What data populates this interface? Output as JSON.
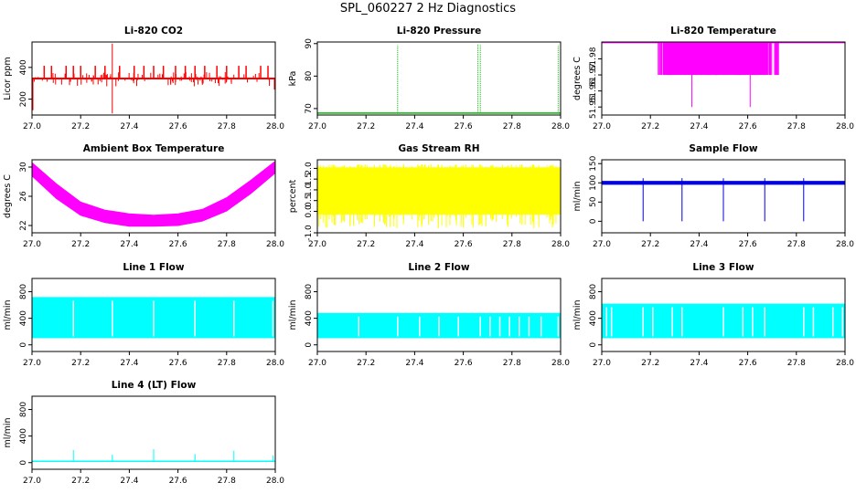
{
  "figure": {
    "title": "SPL_060227  2 Hz Diagnostics"
  },
  "chart_data": [
    {
      "id": "co2",
      "type": "line",
      "title": "Li-820 CO2",
      "ylabel": "Licor ppm",
      "xlim": [
        27.0,
        28.0
      ],
      "ylim": [
        100,
        560
      ],
      "xticks": [
        27.0,
        27.2,
        27.4,
        27.6,
        27.8,
        28.0
      ],
      "xtick_labels": [
        "27.0",
        "27.2",
        "27.4",
        "27.6",
        "27.8",
        "28.0"
      ],
      "yticks": [
        200,
        400
      ],
      "ytick_labels": [
        "200",
        "400"
      ],
      "color": "#ff0000",
      "series": {
        "baseline": 330,
        "spikes_up": [
          27.05,
          27.08,
          27.14,
          27.17,
          27.2,
          27.26,
          27.3,
          27.36,
          27.42,
          27.46,
          27.5,
          27.54,
          27.59,
          27.63,
          27.67,
          27.71,
          27.76,
          27.8,
          27.85,
          27.88,
          27.94,
          27.97
        ],
        "spike_up_value": 410,
        "big_spike_x": 27.33,
        "big_spike_range": [
          110,
          550
        ],
        "dip_start": [
          27.0,
          130
        ]
      }
    },
    {
      "id": "pressure",
      "type": "line",
      "title": "Li-820 Pressure",
      "ylabel": "kPa",
      "xlim": [
        27.0,
        28.0
      ],
      "ylim": [
        68,
        90.5
      ],
      "xticks": [
        27.0,
        27.2,
        27.4,
        27.6,
        27.8,
        28.0
      ],
      "xtick_labels": [
        "27.0",
        "27.2",
        "27.4",
        "27.6",
        "27.8",
        "28.0"
      ],
      "yticks": [
        70,
        80,
        90
      ],
      "ytick_labels": [
        "70",
        "80",
        "90"
      ],
      "color": "#00bb00",
      "series": {
        "baseline": 68.6,
        "jumps": [
          27.0,
          27.33,
          27.66,
          27.67,
          27.99
        ],
        "jump_values": [
          85,
          89.5,
          89.8,
          89.6,
          89.5
        ]
      }
    },
    {
      "id": "licor_temp",
      "type": "line",
      "title": "Li-820 Temperature",
      "ylabel": "degrees C",
      "xlim": [
        27.0,
        28.0
      ],
      "ylim": [
        51.945,
        51.9905
      ],
      "xticks": [
        27.0,
        27.2,
        27.4,
        27.6,
        27.8,
        28.0
      ],
      "xtick_labels": [
        "27.0",
        "27.2",
        "27.4",
        "27.6",
        "27.8",
        "28.0"
      ],
      "yticks": [
        51.95,
        51.96,
        51.97,
        51.98
      ],
      "ytick_labels": [
        "51.95",
        "51.96",
        "51.97",
        "51.98"
      ],
      "color": "#ff00ff",
      "series": {
        "high": 51.99,
        "low": 51.97,
        "min_spike": 51.95,
        "band_range": [
          27.23,
          27.73
        ],
        "min_spikes": [
          27.37,
          27.61
        ]
      }
    },
    {
      "id": "box_temp",
      "type": "area",
      "title": "Ambient Box Temperature",
      "ylabel": "degrees C",
      "xlim": [
        27.0,
        28.0
      ],
      "ylim": [
        21.0,
        31.0
      ],
      "xticks": [
        27.0,
        27.2,
        27.4,
        27.6,
        27.8,
        28.0
      ],
      "xtick_labels": [
        "27.0",
        "27.2",
        "27.4",
        "27.6",
        "27.8",
        "28.0"
      ],
      "yticks": [
        22,
        26,
        30
      ],
      "ytick_labels": [
        "22",
        "26",
        "30"
      ],
      "color": "#ff00ff",
      "series": {
        "x": [
          27.0,
          27.1,
          27.2,
          27.3,
          27.4,
          27.5,
          27.6,
          27.7,
          27.8,
          27.9,
          28.0
        ],
        "low": [
          28.8,
          25.7,
          23.4,
          22.4,
          21.9,
          21.9,
          22.0,
          22.6,
          24.0,
          26.4,
          29.2
        ],
        "high": [
          30.6,
          27.7,
          25.2,
          24.1,
          23.6,
          23.4,
          23.6,
          24.2,
          25.8,
          28.2,
          30.8
        ]
      }
    },
    {
      "id": "rh",
      "type": "area",
      "title": "Gas Stream RH",
      "ylabel": "percent",
      "xlim": [
        27.0,
        28.0
      ],
      "ylim": [
        -1.0,
        2.4
      ],
      "xticks": [
        27.0,
        27.2,
        27.4,
        27.6,
        27.8,
        28.0
      ],
      "xtick_labels": [
        "27.0",
        "27.2",
        "27.4",
        "27.6",
        "27.8",
        "28.0"
      ],
      "yticks": [
        -1.0,
        0.0,
        0.5,
        1.0,
        1.5,
        2.0
      ],
      "ytick_labels": [
        "-1.0",
        "0.0",
        "0.5",
        "1.0",
        "1.5",
        "2.0"
      ],
      "color": "#ffff00",
      "series": {
        "low": -0.15,
        "high": 2.05,
        "min": -0.8,
        "max": 2.2
      }
    },
    {
      "id": "sample_flow",
      "type": "line",
      "title": "Sample Flow",
      "ylabel": "ml/min",
      "xlim": [
        27.0,
        28.0
      ],
      "ylim": [
        -30,
        160
      ],
      "xticks": [
        27.0,
        27.2,
        27.4,
        27.6,
        27.8,
        28.0
      ],
      "xtick_labels": [
        "27.0",
        "27.2",
        "27.4",
        "27.6",
        "27.8",
        "28.0"
      ],
      "yticks": [
        0,
        50,
        100,
        150
      ],
      "ytick_labels": [
        "0",
        "50",
        "100",
        "150"
      ],
      "color": "#0000dd",
      "series": {
        "baseline": 100,
        "dips": [
          27.17,
          27.33,
          27.5,
          27.67,
          27.83,
          28.0
        ],
        "dip_value": 0,
        "peak": 112
      }
    },
    {
      "id": "line1",
      "type": "area",
      "title": "Line 1 Flow",
      "ylabel": "ml/min",
      "xlim": [
        27.0,
        28.0
      ],
      "ylim": [
        -100,
        1000
      ],
      "xticks": [
        27.0,
        27.2,
        27.4,
        27.6,
        27.8,
        28.0
      ],
      "xtick_labels": [
        "27.0",
        "27.2",
        "27.4",
        "27.6",
        "27.8",
        "28.0"
      ],
      "yticks": [
        0,
        400,
        800
      ],
      "ytick_labels": [
        "0",
        "400",
        "800"
      ],
      "color": "#00ffff",
      "series": {
        "low": 100,
        "high": 720,
        "gaps": [
          27.17,
          27.33,
          27.5,
          27.67,
          27.83,
          27.99
        ]
      }
    },
    {
      "id": "line2",
      "type": "area",
      "title": "Line 2 Flow",
      "ylabel": "ml/min",
      "xlim": [
        27.0,
        28.0
      ],
      "ylim": [
        -100,
        1000
      ],
      "xticks": [
        27.0,
        27.2,
        27.4,
        27.6,
        27.8,
        28.0
      ],
      "xtick_labels": [
        "27.0",
        "27.2",
        "27.4",
        "27.6",
        "27.8",
        "28.0"
      ],
      "yticks": [
        0,
        400,
        800
      ],
      "ytick_labels": [
        "0",
        "400",
        "800"
      ],
      "color": "#00ffff",
      "series": {
        "low": 100,
        "high": 480,
        "gaps": [
          27.17,
          27.33,
          27.42,
          27.5,
          27.58,
          27.67,
          27.71,
          27.75,
          27.79,
          27.83,
          27.87,
          27.92,
          27.99
        ]
      }
    },
    {
      "id": "line3",
      "type": "area",
      "title": "Line 3 Flow",
      "ylabel": "ml/min",
      "xlim": [
        27.0,
        28.0
      ],
      "ylim": [
        -100,
        1000
      ],
      "xticks": [
        27.0,
        27.2,
        27.4,
        27.6,
        27.8,
        28.0
      ],
      "xtick_labels": [
        "27.0",
        "27.2",
        "27.4",
        "27.6",
        "27.8",
        "28.0"
      ],
      "yticks": [
        0,
        400,
        800
      ],
      "ytick_labels": [
        "0",
        "400",
        "800"
      ],
      "color": "#00ffff",
      "series": {
        "low": 100,
        "high": 620,
        "gaps": [
          27.02,
          27.04,
          27.17,
          27.21,
          27.29,
          27.33,
          27.5,
          27.58,
          27.62,
          27.67,
          27.83,
          27.87,
          27.95,
          27.99
        ]
      }
    },
    {
      "id": "line4",
      "type": "line",
      "title": "Line 4 (LT) Flow",
      "ylabel": "ml/min",
      "xlim": [
        27.0,
        28.0
      ],
      "ylim": [
        -100,
        1000
      ],
      "xticks": [
        27.0,
        27.2,
        27.4,
        27.6,
        27.8,
        28.0
      ],
      "xtick_labels": [
        "27.0",
        "27.2",
        "27.4",
        "27.6",
        "27.8",
        "28.0"
      ],
      "yticks": [
        0,
        400,
        800
      ],
      "ytick_labels": [
        "0",
        "400",
        "800"
      ],
      "color": "#00ffff",
      "series": {
        "baseline": 20,
        "spikes": [
          27.17,
          27.33,
          27.5,
          27.67,
          27.83,
          27.99
        ],
        "spike_values": [
          190,
          120,
          200,
          130,
          180,
          110
        ]
      }
    }
  ]
}
